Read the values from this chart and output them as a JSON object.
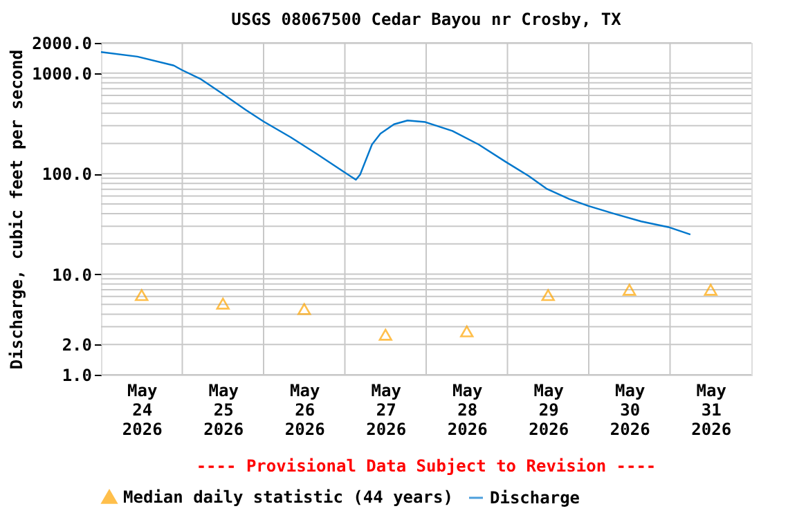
{
  "chart_data": {
    "type": "line",
    "title": "USGS 08067500 Cedar Bayou nr Crosby, TX",
    "ylabel": "Discharge, cubic feet per second",
    "log": "y",
    "grid": true,
    "legend": "bottom",
    "xlim": [
      "2026-05-24T00:00",
      "2026-06-01T00:00"
    ],
    "xticks": [
      {
        "value": "2026-05-24T12:00",
        "label": "May\n24\n2026"
      },
      {
        "value": "2026-05-25T12:00",
        "label": "May\n25\n2026"
      },
      {
        "value": "2026-05-26T12:00",
        "label": "May\n26\n2026"
      },
      {
        "value": "2026-05-27T12:00",
        "label": "May\n27\n2026"
      },
      {
        "value": "2026-05-28T12:00",
        "label": "May\n28\n2026"
      },
      {
        "value": "2026-05-29T12:00",
        "label": "May\n29\n2026"
      },
      {
        "value": "2026-05-30T12:00",
        "label": "May\n30\n2026"
      },
      {
        "value": "2026-05-31T12:00",
        "label": "May\n31\n2026"
      }
    ],
    "ylim": [
      1,
      2000
    ],
    "yticks": [
      {
        "value": 1,
        "label": "1.0"
      },
      {
        "value": 2,
        "label": "2.0"
      },
      {
        "value": 10,
        "label": "10.0"
      },
      {
        "value": 100,
        "label": "100.0"
      },
      {
        "value": 1000,
        "label": "1000.0"
      },
      {
        "value": 2000,
        "label": "2000.0"
      }
    ],
    "annotations": [
      "---- Provisional Data Subject to Revision ----"
    ],
    "series": [
      {
        "name": "Median daily statistic (44 years)",
        "type": "scatter",
        "marker": "triangle",
        "color": "#ffa500",
        "x": [
          "2026-05-24T12:00",
          "2026-05-25T12:00",
          "2026-05-26T12:00",
          "2026-05-27T12:00",
          "2026-05-28T12:00",
          "2026-05-29T12:00",
          "2026-05-30T12:00",
          "2026-05-31T12:00"
        ],
        "values": [
          6.2,
          5.1,
          4.5,
          2.5,
          2.7,
          6.2,
          7.0,
          7.0
        ]
      },
      {
        "name": "Discharge",
        "type": "line",
        "color": "#0077cc",
        "x": [
          "2026-05-24T00:00",
          "2026-05-24T10:45",
          "2026-05-24T21:30",
          "2026-05-25T00:00",
          "2026-05-25T05:15",
          "2026-05-25T12:00",
          "2026-05-25T18:45",
          "2026-05-26T00:00",
          "2026-05-26T08:00",
          "2026-05-26T15:45",
          "2026-05-26T23:45",
          "2026-05-27T03:15",
          "2026-05-27T04:30",
          "2026-05-27T08:00",
          "2026-05-27T10:30",
          "2026-05-27T14:30",
          "2026-05-27T18:30",
          "2026-05-27T23:45",
          "2026-05-28T07:45",
          "2026-05-28T15:30",
          "2026-05-28T23:30",
          "2026-05-29T06:15",
          "2026-05-29T11:30",
          "2026-05-29T18:15",
          "2026-05-29T23:45",
          "2026-05-30T07:30",
          "2026-05-30T15:30",
          "2026-05-30T23:30",
          "2026-05-31T06:00"
        ],
        "values": [
          1620,
          1460,
          1190,
          1070,
          880,
          620,
          430,
          330,
          230,
          157,
          104,
          87,
          98,
          195,
          250,
          310,
          338,
          326,
          266,
          195,
          131,
          95,
          71,
          56,
          48,
          40,
          33.5,
          29.4,
          24.8
        ]
      }
    ]
  }
}
